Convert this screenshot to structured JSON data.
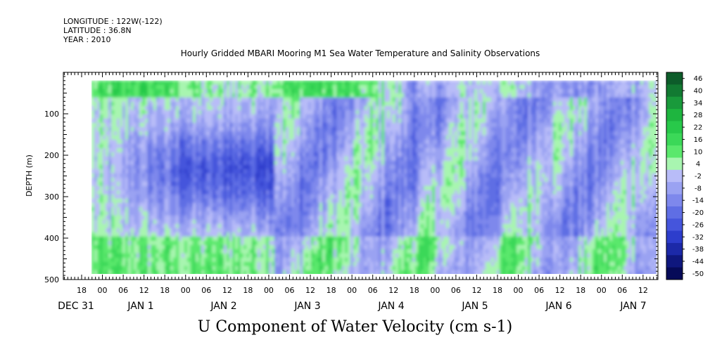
{
  "header": {
    "longitude": "LONGITUDE : 122W(-122)",
    "latitude": "LATITUDE : 36.8N",
    "year": "YEAR : 2010"
  },
  "chart_data": {
    "type": "heatmap",
    "title": "Hourly Gridded MBARI Mooring M1 Sea Water Temperature and Salinity Observations",
    "xlabel": "",
    "ylabel": "DEPTH (m)",
    "bottom_title": "U Component of Water Velocity (cm s-1)",
    "ylim": [
      500,
      0
    ],
    "y_ticks": [
      100,
      200,
      300,
      400,
      500
    ],
    "y_tick_labels": [
      "100",
      "200",
      "300",
      "400",
      "500"
    ],
    "x_tick_labels": [
      "18",
      "00",
      "06",
      "12",
      "18",
      "00",
      "06",
      "12",
      "18",
      "00",
      "06",
      "12",
      "18",
      "00",
      "06",
      "12",
      "18",
      "00",
      "06",
      "12",
      "18",
      "00",
      "06",
      "12",
      "18",
      "00",
      "06",
      "12"
    ],
    "day_labels": [
      "DEC 31",
      "JAN 1",
      "JAN 2",
      "JAN 3",
      "JAN 4",
      "JAN 5",
      "JAN 6",
      "JAN 7"
    ],
    "data_depth_range": [
      20,
      490
    ],
    "colorbar": {
      "levels": [
        "46",
        "40",
        "34",
        "28",
        "22",
        "16",
        "10",
        "4",
        "-2",
        "-8",
        "-14",
        "-20",
        "-26",
        "-32",
        "-38",
        "-44",
        "-50"
      ],
      "colors": [
        "#0d5c2a",
        "#127a32",
        "#199a3b",
        "#1eb53f",
        "#28c94a",
        "#3bd858",
        "#5ae86c",
        "#a8f5b0",
        "#b8bcf8",
        "#9aa2f2",
        "#7e88ec",
        "#5f6ee4",
        "#4555dc",
        "#2d3dcc",
        "#1c29a8",
        "#0f177e",
        "#060a58"
      ]
    },
    "legend": "right"
  }
}
